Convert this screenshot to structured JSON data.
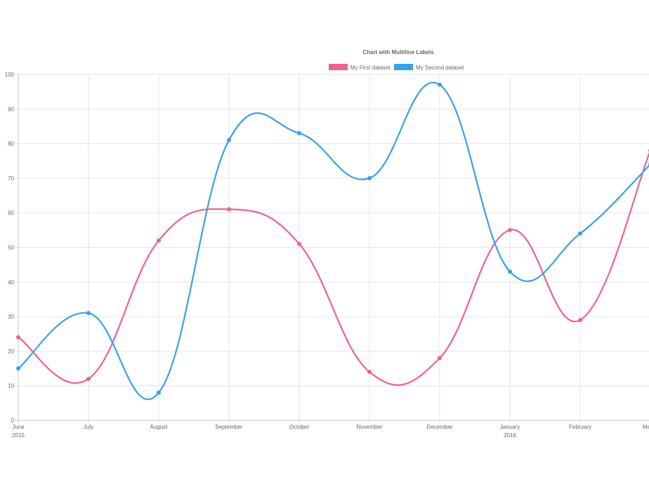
{
  "chart_data": {
    "type": "line",
    "title": "Chart with Multiline Labels",
    "legend_position": "top",
    "grid": true,
    "ylim": [
      0,
      100
    ],
    "y_ticks": [
      0,
      10,
      20,
      30,
      40,
      50,
      60,
      70,
      80,
      90,
      100
    ],
    "categories": [
      {
        "line1": "June",
        "line2": "2015"
      },
      {
        "line1": "July",
        "line2": ""
      },
      {
        "line1": "August",
        "line2": ""
      },
      {
        "line1": "September",
        "line2": ""
      },
      {
        "line1": "October",
        "line2": ""
      },
      {
        "line1": "November",
        "line2": ""
      },
      {
        "line1": "December",
        "line2": ""
      },
      {
        "line1": "January",
        "line2": "2016"
      },
      {
        "line1": "February",
        "line2": ""
      },
      {
        "line1": "March",
        "line2": ""
      }
    ],
    "series": [
      {
        "name": "My First dataset",
        "color": "#f0628a",
        "values": [
          24,
          12,
          52,
          61,
          51,
          14,
          18,
          55,
          29,
          78
        ]
      },
      {
        "name": "My Second dataset",
        "color": "#36a2eb",
        "values": [
          15,
          31,
          8,
          81,
          83,
          70,
          97,
          43,
          54,
          74
        ]
      }
    ]
  }
}
